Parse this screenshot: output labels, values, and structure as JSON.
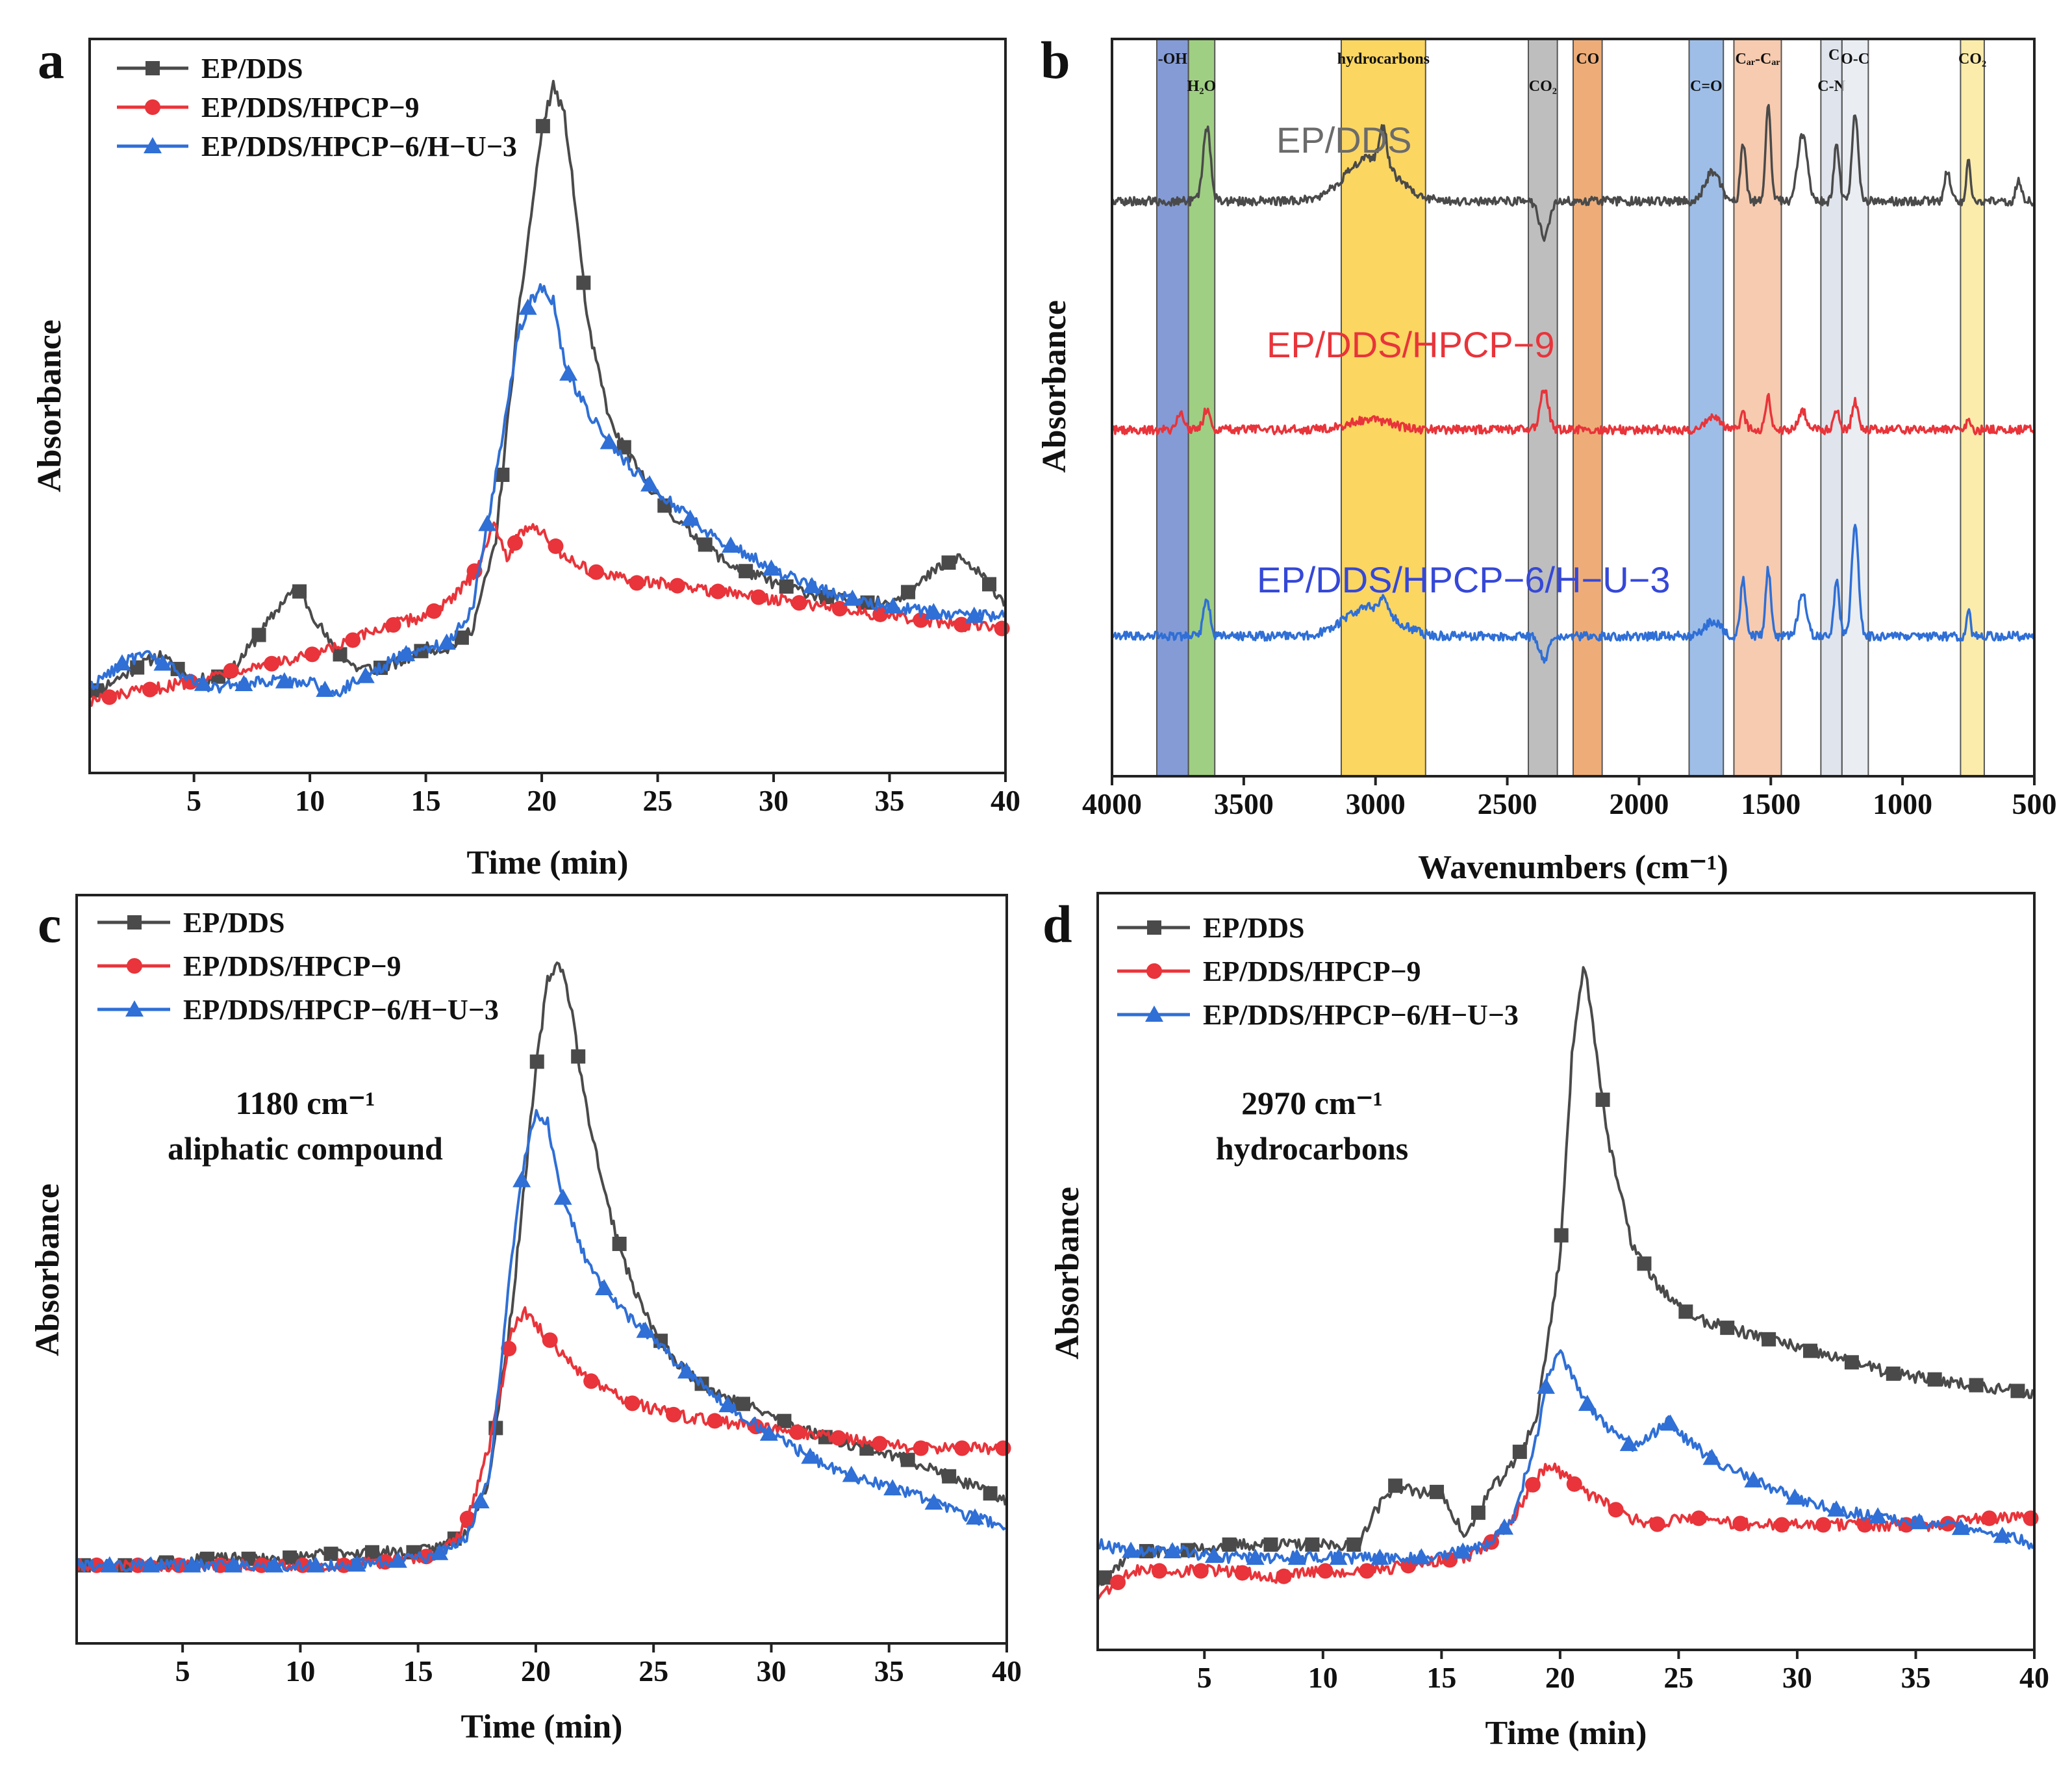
{
  "chart_data": [
    {
      "id": "a",
      "type": "line",
      "panel_label": "a",
      "xlabel": "Time (min)",
      "ylabel": "Absorbance",
      "xlim": [
        0.5,
        40
      ],
      "ylim": [
        0,
        1.12
      ],
      "xticks": [
        5,
        10,
        15,
        20,
        25,
        30,
        35,
        40
      ],
      "legend_position": "top-left",
      "series": [
        {
          "name": "EP/DDS",
          "color": "#4a4a4a",
          "marker": "square",
          "x": [
            0.5,
            2,
            3.5,
            5,
            6.5,
            8,
            9,
            9.5,
            10,
            11,
            12,
            13,
            14,
            15,
            16,
            17,
            18,
            19,
            20,
            20.5,
            21,
            21.5,
            22,
            23,
            24,
            25,
            26,
            27,
            28,
            30,
            32,
            34,
            35,
            36,
            37,
            38,
            39,
            40
          ],
          "y": [
            0.12,
            0.15,
            0.18,
            0.14,
            0.15,
            0.22,
            0.27,
            0.28,
            0.25,
            0.19,
            0.16,
            0.16,
            0.17,
            0.19,
            0.19,
            0.22,
            0.35,
            0.7,
            0.98,
            1.05,
            1.0,
            0.85,
            0.68,
            0.53,
            0.47,
            0.42,
            0.38,
            0.35,
            0.32,
            0.29,
            0.27,
            0.26,
            0.26,
            0.28,
            0.31,
            0.33,
            0.3,
            0.26
          ]
        },
        {
          "name": "EP/DDS/HPCP−9",
          "color": "#e8343a",
          "marker": "circle",
          "x": [
            0.5,
            2,
            3.5,
            5,
            7,
            9,
            11,
            13,
            15,
            16,
            17,
            17.5,
            18,
            18.5,
            19,
            19.5,
            20,
            21,
            22,
            23,
            24,
            25,
            27,
            29,
            31,
            33,
            35,
            37,
            40
          ],
          "y": [
            0.11,
            0.12,
            0.13,
            0.14,
            0.16,
            0.17,
            0.19,
            0.22,
            0.24,
            0.26,
            0.3,
            0.34,
            0.38,
            0.33,
            0.36,
            0.38,
            0.37,
            0.33,
            0.31,
            0.3,
            0.29,
            0.29,
            0.28,
            0.27,
            0.26,
            0.25,
            0.24,
            0.23,
            0.22
          ]
        },
        {
          "name": "EP/DDS/HPCP−6/H−U−3",
          "color": "#2f6fd6",
          "marker": "triangle",
          "x": [
            0.5,
            2,
            3,
            4,
            5,
            6,
            8,
            10,
            11,
            12,
            13,
            14,
            15,
            16,
            17,
            18,
            19,
            19.5,
            20,
            20.5,
            21,
            22,
            23,
            24,
            25,
            26,
            27,
            28,
            30,
            32,
            34,
            36,
            38,
            40
          ],
          "y": [
            0.13,
            0.17,
            0.18,
            0.16,
            0.14,
            0.13,
            0.14,
            0.14,
            0.12,
            0.14,
            0.16,
            0.18,
            0.19,
            0.2,
            0.25,
            0.45,
            0.67,
            0.72,
            0.74,
            0.72,
            0.62,
            0.55,
            0.5,
            0.46,
            0.43,
            0.4,
            0.37,
            0.35,
            0.31,
            0.28,
            0.26,
            0.25,
            0.24,
            0.24
          ]
        }
      ]
    },
    {
      "id": "b",
      "type": "line",
      "panel_label": "b",
      "xlabel": "Wavenumbers (cm⁻¹)",
      "ylabel": "Absorbance",
      "xlim": [
        4000,
        500
      ],
      "ylim": [
        0,
        1.0
      ],
      "xticks": [
        4000,
        3500,
        3000,
        2500,
        2000,
        1500,
        1000,
        500
      ],
      "bands": [
        {
          "label": "-OH",
          "from": 3830,
          "to": 3710,
          "color": "#5b79c8",
          "label_row": 1
        },
        {
          "label": "H₂O",
          "from": 3710,
          "to": 3610,
          "color": "#7fbf5a",
          "label_row": 2
        },
        {
          "label": "hydrocarbons",
          "from": 3130,
          "to": 2810,
          "color": "#f9c82c",
          "label_row": 1
        },
        {
          "label": "CO₂",
          "from": 2420,
          "to": 2310,
          "color": "#a8a8a8",
          "label_row": 2
        },
        {
          "label": "CO",
          "from": 2250,
          "to": 2140,
          "color": "#e8924b",
          "label_row": 1
        },
        {
          "label": "C=O",
          "from": 1810,
          "to": 1680,
          "color": "#7ea8e0",
          "label_row": 2
        },
        {
          "label": "Cₐᵣ-Cₐᵣ",
          "from": 1640,
          "to": 1460,
          "color": "#f4b994",
          "label_row": 1
        },
        {
          "label": "C-N",
          "from": 1310,
          "to": 1230,
          "color": "#d6dbe5",
          "label_row": 2
        },
        {
          "label": "O-C",
          "from": 1230,
          "to": 1130,
          "color": "#e3e8ef",
          "label_row": 1
        },
        {
          "label": "CO₂",
          "from": 780,
          "to": 690,
          "color": "#fbe58f",
          "label_row": 1
        }
      ],
      "c_label": "C",
      "series": [
        {
          "name": "EP/DDS",
          "color": "#4a4a4a",
          "label_color": "#6b6b6b",
          "offset": 0.78,
          "scale": 1.0,
          "peaks": [
            [
              3640,
              0.1,
              20
            ],
            [
              3020,
              0.06,
              130
            ],
            [
              2970,
              0.05,
              18
            ],
            [
              2360,
              -0.05,
              25
            ],
            [
              1720,
              0.04,
              40
            ],
            [
              1605,
              0.08,
              14
            ],
            [
              1510,
              0.13,
              14
            ],
            [
              1380,
              0.09,
              25
            ],
            [
              1250,
              0.08,
              14
            ],
            [
              1180,
              0.12,
              16
            ],
            [
              830,
              0.04,
              15
            ],
            [
              750,
              0.06,
              10
            ],
            [
              560,
              0.03,
              14
            ]
          ]
        },
        {
          "name": "EP/DDS/HPCP−9",
          "color": "#e8343a",
          "label_color": "#e8343a",
          "offset": 0.47,
          "scale": 0.55,
          "peaks": [
            [
              3740,
              0.04,
              18
            ],
            [
              3640,
              0.05,
              18
            ],
            [
              3020,
              0.025,
              110
            ],
            [
              2360,
              0.1,
              22
            ],
            [
              1720,
              0.03,
              40
            ],
            [
              1605,
              0.04,
              14
            ],
            [
              1510,
              0.08,
              14
            ],
            [
              1380,
              0.05,
              20
            ],
            [
              1250,
              0.05,
              14
            ],
            [
              1180,
              0.07,
              16
            ],
            [
              750,
              0.02,
              10
            ]
          ]
        },
        {
          "name": "EP/DDS/HPCP−6/H−U−3",
          "color": "#2f6fd6",
          "label_color": "#3548d8",
          "offset": 0.19,
          "scale": 1.0,
          "peaks": [
            [
              3640,
              0.05,
              18
            ],
            [
              3020,
              0.04,
              130
            ],
            [
              2970,
              0.02,
              18
            ],
            [
              2360,
              -0.03,
              25
            ],
            [
              1720,
              0.02,
              40
            ],
            [
              1605,
              0.08,
              14
            ],
            [
              1510,
              0.09,
              14
            ],
            [
              1380,
              0.06,
              22
            ],
            [
              1250,
              0.08,
              14
            ],
            [
              1180,
              0.15,
              18
            ],
            [
              750,
              0.04,
              10
            ]
          ]
        }
      ]
    },
    {
      "id": "c",
      "type": "line",
      "panel_label": "c",
      "xlabel": "Time (min)",
      "ylabel": "Absorbance",
      "xlim": [
        0.5,
        40
      ],
      "ylim": [
        0,
        1.15
      ],
      "xticks": [
        5,
        10,
        15,
        20,
        25,
        30,
        35,
        40
      ],
      "legend_position": "top-left",
      "annotation": [
        "1180 cm⁻¹",
        "aliphatic compound"
      ],
      "series": [
        {
          "name": "EP/DDS",
          "color": "#4a4a4a",
          "marker": "square",
          "x": [
            0.5,
            3,
            6,
            9,
            12,
            15,
            16,
            17,
            18,
            19,
            20,
            20.5,
            21,
            21.5,
            22,
            23,
            24,
            25,
            26,
            27,
            28,
            30,
            32,
            34,
            36,
            38,
            40
          ],
          "y": [
            0.12,
            0.12,
            0.13,
            0.13,
            0.14,
            0.14,
            0.15,
            0.17,
            0.25,
            0.52,
            0.88,
            1.02,
            1.05,
            0.98,
            0.85,
            0.68,
            0.56,
            0.48,
            0.43,
            0.4,
            0.38,
            0.35,
            0.32,
            0.3,
            0.28,
            0.25,
            0.22
          ]
        },
        {
          "name": "EP/DDS/HPCP−9",
          "color": "#e8343a",
          "marker": "circle",
          "x": [
            0.5,
            3,
            6,
            9,
            12,
            15,
            16,
            17,
            18,
            19,
            19.5,
            20,
            21,
            22,
            23,
            24,
            25,
            26,
            28,
            30,
            32,
            34,
            36,
            38,
            40
          ],
          "y": [
            0.12,
            0.12,
            0.12,
            0.12,
            0.12,
            0.13,
            0.14,
            0.18,
            0.3,
            0.48,
            0.51,
            0.49,
            0.45,
            0.41,
            0.39,
            0.37,
            0.36,
            0.35,
            0.34,
            0.33,
            0.32,
            0.31,
            0.3,
            0.3,
            0.3
          ]
        },
        {
          "name": "EP/DDS/HPCP−6/H−U−3",
          "color": "#2f6fd6",
          "marker": "triangle",
          "x": [
            0.5,
            3,
            6,
            9,
            12,
            15,
            16,
            17,
            18,
            19,
            19.5,
            20,
            20.5,
            21,
            22,
            23,
            24,
            25,
            26,
            28,
            30,
            32,
            34,
            36,
            38,
            40
          ],
          "y": [
            0.12,
            0.12,
            0.12,
            0.12,
            0.12,
            0.13,
            0.14,
            0.16,
            0.25,
            0.6,
            0.74,
            0.82,
            0.8,
            0.7,
            0.6,
            0.54,
            0.5,
            0.47,
            0.43,
            0.37,
            0.32,
            0.28,
            0.25,
            0.23,
            0.2,
            0.18
          ]
        }
      ]
    },
    {
      "id": "d",
      "type": "line",
      "panel_label": "d",
      "xlabel": "Time (min)",
      "ylabel": "Absorbance",
      "xlim": [
        0.5,
        40
      ],
      "ylim": [
        0,
        1.15
      ],
      "xticks": [
        5,
        10,
        15,
        20,
        25,
        30,
        35,
        40
      ],
      "legend_position": "top-left",
      "annotation": [
        "2970 cm⁻¹",
        "hydrocarbons"
      ],
      "series": [
        {
          "name": "EP/DDS",
          "color": "#4a4a4a",
          "marker": "square",
          "x": [
            0.5,
            2,
            4,
            6,
            8,
            10,
            11.5,
            12,
            13,
            14,
            15,
            16,
            17,
            18,
            19,
            20,
            20.5,
            21,
            21.5,
            22,
            23,
            24,
            25,
            26,
            28,
            30,
            32,
            34,
            36,
            38,
            40
          ],
          "y": [
            0.1,
            0.15,
            0.15,
            0.16,
            0.16,
            0.16,
            0.16,
            0.2,
            0.25,
            0.24,
            0.24,
            0.17,
            0.24,
            0.28,
            0.35,
            0.6,
            0.9,
            1.05,
            0.92,
            0.78,
            0.62,
            0.56,
            0.52,
            0.5,
            0.48,
            0.46,
            0.44,
            0.42,
            0.41,
            0.4,
            0.39
          ]
        },
        {
          "name": "EP/DDS/HPCP−9",
          "color": "#e8343a",
          "marker": "circle",
          "x": [
            0.5,
            2,
            4,
            6,
            8,
            10,
            12,
            14,
            16,
            17,
            18,
            19,
            19.5,
            20,
            21,
            22,
            23,
            24,
            25,
            26,
            28,
            30,
            32,
            34,
            36,
            38,
            40
          ],
          "y": [
            0.08,
            0.12,
            0.12,
            0.12,
            0.11,
            0.12,
            0.12,
            0.13,
            0.14,
            0.16,
            0.2,
            0.26,
            0.28,
            0.27,
            0.24,
            0.22,
            0.2,
            0.19,
            0.2,
            0.2,
            0.19,
            0.19,
            0.19,
            0.19,
            0.19,
            0.2,
            0.2
          ]
        },
        {
          "name": "EP/DDS/HPCP−6/H−U−3",
          "color": "#2f6fd6",
          "marker": "triangle",
          "x": [
            0.5,
            2,
            4,
            6,
            8,
            10,
            12,
            14,
            16,
            17,
            18,
            19,
            19.5,
            20,
            20.5,
            21,
            22,
            23,
            24,
            24.5,
            25,
            26,
            28,
            30,
            32,
            34,
            36,
            38,
            40
          ],
          "y": [
            0.16,
            0.15,
            0.15,
            0.14,
            0.14,
            0.14,
            0.14,
            0.14,
            0.15,
            0.16,
            0.2,
            0.32,
            0.42,
            0.45,
            0.42,
            0.38,
            0.34,
            0.31,
            0.33,
            0.35,
            0.33,
            0.3,
            0.26,
            0.23,
            0.21,
            0.2,
            0.19,
            0.18,
            0.16
          ]
        }
      ]
    }
  ]
}
